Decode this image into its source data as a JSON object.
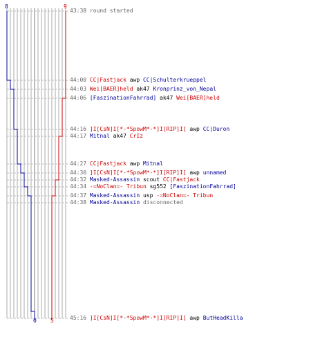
{
  "colors": {
    "red_team": "#cc0000",
    "blue_team": "#000099",
    "grid": "#aaaaaa",
    "time": "#666666"
  },
  "counters": {
    "blue_start": "8",
    "red_start": "9",
    "blue_end": "0",
    "red_end": "5"
  },
  "events": [
    {
      "time": "43:38",
      "parts": [
        {
          "t": "round started",
          "c": "gray"
        }
      ]
    },
    {
      "time": "44:00",
      "parts": [
        {
          "t": "CC|Fastjack",
          "c": "red"
        },
        {
          "t": " awp ",
          "c": "plain"
        },
        {
          "t": "CC|Schulterkrueppel",
          "c": "blue"
        }
      ]
    },
    {
      "time": "44:03",
      "parts": [
        {
          "t": "Wei[BAER]held",
          "c": "red"
        },
        {
          "t": " ak47 ",
          "c": "plain"
        },
        {
          "t": "Kronprinz_von_Nepal",
          "c": "blue"
        }
      ]
    },
    {
      "time": "44:06",
      "parts": [
        {
          "t": "[FaszinationFahrrad]",
          "c": "blue"
        },
        {
          "t": " ak47 ",
          "c": "plain"
        },
        {
          "t": "Wei[BAER]held",
          "c": "red"
        }
      ]
    },
    {
      "time": "44:16",
      "parts": [
        {
          "t": "]I[CsN]I[*-*SpowM*-*]I[RIP]I[",
          "c": "red"
        },
        {
          "t": " awp ",
          "c": "plain"
        },
        {
          "t": "CC|Duron",
          "c": "blue"
        }
      ]
    },
    {
      "time": "44:17",
      "parts": [
        {
          "t": "Mitnal",
          "c": "blue"
        },
        {
          "t": " ak47 ",
          "c": "plain"
        },
        {
          "t": "CrIz",
          "c": "red"
        }
      ]
    },
    {
      "time": "44:27",
      "parts": [
        {
          "t": "CC|Fastjack",
          "c": "red"
        },
        {
          "t": " awp ",
          "c": "plain"
        },
        {
          "t": "Mitnal",
          "c": "blue"
        }
      ]
    },
    {
      "time": "44:30",
      "parts": [
        {
          "t": "]I[CsN]I[*-*SpowM*-*]I[RIP]I[",
          "c": "red"
        },
        {
          "t": " awp ",
          "c": "plain"
        },
        {
          "t": "unnamed",
          "c": "blue"
        }
      ]
    },
    {
      "time": "44:32",
      "parts": [
        {
          "t": "Masked-Assassin",
          "c": "blue"
        },
        {
          "t": " scout ",
          "c": "plain"
        },
        {
          "t": "CC|Fastjack",
          "c": "red"
        }
      ]
    },
    {
      "time": "44:34",
      "parts": [
        {
          "t": "-=NoClan=- Tribun",
          "c": "red"
        },
        {
          "t": " sg552 ",
          "c": "plain"
        },
        {
          "t": "[FaszinationFahrrad]",
          "c": "blue"
        }
      ]
    },
    {
      "time": "44:37",
      "parts": [
        {
          "t": "Masked-Assassin",
          "c": "blue"
        },
        {
          "t": " usp ",
          "c": "plain"
        },
        {
          "t": "-=NoClan=- Tribun",
          "c": "red"
        }
      ]
    },
    {
      "time": "44:38",
      "parts": [
        {
          "t": "Masked-Assassin",
          "c": "blue"
        },
        {
          "t": " disconnected",
          "c": "gray"
        }
      ]
    },
    {
      "time": "45:16",
      "parts": [
        {
          "t": "]I[CsN]I[*-*SpowM*-*]I[RIP]I[",
          "c": "red"
        },
        {
          "t": " awp ",
          "c": "plain"
        },
        {
          "t": "ButHeadKilla",
          "c": "blue"
        }
      ]
    }
  ]
}
